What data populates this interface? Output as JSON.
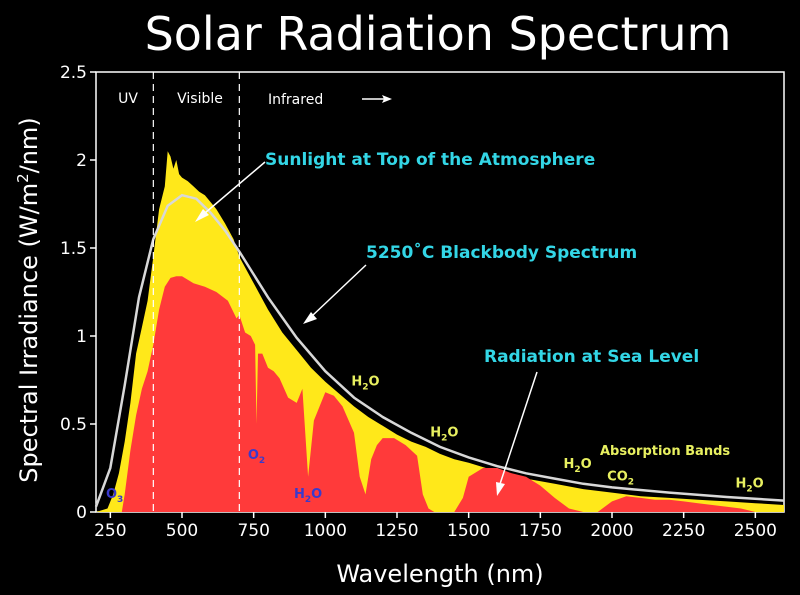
{
  "chart_data": {
    "type": "area",
    "title": "Solar Radiation Spectrum",
    "xlabel": "Wavelength (nm)",
    "ylabel_main": "Spectral Irradiance (W/m",
    "ylabel_sup": "2",
    "ylabel_end": "/nm)",
    "xlim": [
      200,
      2600
    ],
    "ylim": [
      0,
      2.5
    ],
    "x_ticks": [
      250,
      500,
      750,
      1000,
      1250,
      1500,
      1750,
      2000,
      2250,
      2500
    ],
    "x_tick_labels": [
      "250",
      "500",
      "750",
      "1000",
      "1250",
      "1500",
      "1750",
      "2000",
      "2250",
      "2500"
    ],
    "y_ticks": [
      0,
      0.5,
      1,
      1.5,
      2,
      2.5
    ],
    "y_tick_labels": [
      "0",
      "0.5",
      "1",
      "1.5",
      "2",
      "2.5"
    ],
    "region_dividers": [
      400,
      700
    ],
    "regions": {
      "uv": "UV",
      "visible": "Visible",
      "infrared": "Infrared"
    },
    "colors": {
      "top_of_atmosphere": "#ffe81a",
      "sea_level": "#ff3a3a",
      "blackbody": "#d8d8d8",
      "label_cyan": "#33d6e6",
      "label_yellow": "#e8f060",
      "label_blue": "#3a3acc"
    },
    "annotations": {
      "toa": "Sunlight at Top of the Atmosphere",
      "blackbody": "5250˚C Blackbody Spectrum",
      "sea_level": "Radiation at Sea Level",
      "absorption": "Absorption Bands"
    },
    "molecules": [
      {
        "base": "O",
        "sub": "3",
        "x": 265,
        "y": 0.08,
        "color": "blue"
      },
      {
        "base": "O",
        "sub": "2",
        "x": 760,
        "y": 0.3,
        "color": "blue"
      },
      {
        "base": "H",
        "sub": "2",
        "tail": "O",
        "x": 940,
        "y": 0.08,
        "color": "blue"
      },
      {
        "base": "H",
        "sub": "2",
        "tail": "O",
        "x": 1140,
        "y": 0.72,
        "color": "yellow"
      },
      {
        "base": "H",
        "sub": "2",
        "tail": "O",
        "x": 1415,
        "y": 0.43,
        "color": "yellow"
      },
      {
        "base": "H",
        "sub": "2",
        "tail": "O",
        "x": 1880,
        "y": 0.25,
        "color": "yellow"
      },
      {
        "base": "CO",
        "sub": "2",
        "x": 2030,
        "y": 0.18,
        "color": "yellow"
      },
      {
        "base": "H",
        "sub": "2",
        "tail": "O",
        "x": 2480,
        "y": 0.14,
        "color": "yellow"
      }
    ],
    "series": [
      {
        "name": "Sunlight at Top of the Atmosphere",
        "x": [
          200,
          240,
          260,
          280,
          300,
          320,
          340,
          360,
          380,
          400,
          420,
          440,
          450,
          460,
          470,
          480,
          490,
          500,
          520,
          540,
          560,
          580,
          600,
          620,
          650,
          680,
          700,
          750,
          800,
          850,
          900,
          950,
          1000,
          1050,
          1100,
          1150,
          1200,
          1250,
          1300,
          1350,
          1400,
          1450,
          1500,
          1600,
          1700,
          1800,
          1900,
          2000,
          2100,
          2200,
          2300,
          2400,
          2500,
          2600
        ],
        "y": [
          0.0,
          0.02,
          0.1,
          0.22,
          0.4,
          0.62,
          0.9,
          1.05,
          1.2,
          1.45,
          1.72,
          1.85,
          2.05,
          2.02,
          1.95,
          2.0,
          1.92,
          1.9,
          1.88,
          1.85,
          1.82,
          1.8,
          1.76,
          1.72,
          1.64,
          1.55,
          1.45,
          1.3,
          1.15,
          1.02,
          0.92,
          0.82,
          0.74,
          0.67,
          0.6,
          0.54,
          0.49,
          0.44,
          0.4,
          0.37,
          0.33,
          0.3,
          0.28,
          0.23,
          0.19,
          0.16,
          0.13,
          0.11,
          0.09,
          0.08,
          0.07,
          0.06,
          0.05,
          0.04
        ]
      },
      {
        "name": "5250˚C Blackbody Spectrum",
        "x": [
          200,
          250,
          300,
          350,
          400,
          450,
          500,
          550,
          600,
          650,
          700,
          800,
          900,
          1000,
          1100,
          1200,
          1300,
          1400,
          1500,
          1600,
          1700,
          1800,
          1900,
          2000,
          2200,
          2400,
          2600
        ],
        "y": [
          0.03,
          0.25,
          0.72,
          1.22,
          1.55,
          1.74,
          1.8,
          1.78,
          1.7,
          1.6,
          1.48,
          1.22,
          0.99,
          0.8,
          0.65,
          0.54,
          0.45,
          0.37,
          0.31,
          0.26,
          0.22,
          0.19,
          0.16,
          0.14,
          0.11,
          0.085,
          0.065
        ]
      },
      {
        "name": "Radiation at Sea Level",
        "x": [
          290,
          300,
          320,
          340,
          360,
          380,
          400,
          420,
          440,
          460,
          480,
          500,
          540,
          580,
          620,
          660,
          690,
          700,
          720,
          740,
          755,
          760,
          765,
          780,
          800,
          820,
          840,
          870,
          900,
          920,
          940,
          960,
          980,
          1000,
          1030,
          1060,
          1100,
          1120,
          1140,
          1160,
          1180,
          1200,
          1240,
          1280,
          1320,
          1340,
          1360,
          1380,
          1400,
          1450,
          1480,
          1500,
          1550,
          1600,
          1650,
          1700,
          1750,
          1800,
          1850,
          1900,
          1950,
          2000,
          2050,
          2100,
          2150,
          2200,
          2250,
          2300,
          2350,
          2400,
          2450,
          2500,
          2600
        ],
        "y": [
          0.0,
          0.1,
          0.35,
          0.55,
          0.7,
          0.8,
          0.95,
          1.15,
          1.28,
          1.33,
          1.34,
          1.34,
          1.3,
          1.28,
          1.25,
          1.2,
          1.1,
          1.12,
          1.02,
          1.0,
          0.95,
          0.5,
          0.9,
          0.9,
          0.82,
          0.8,
          0.76,
          0.65,
          0.62,
          0.7,
          0.2,
          0.52,
          0.6,
          0.68,
          0.66,
          0.6,
          0.45,
          0.2,
          0.1,
          0.3,
          0.38,
          0.42,
          0.42,
          0.38,
          0.32,
          0.1,
          0.02,
          0.0,
          0.0,
          0.0,
          0.08,
          0.2,
          0.25,
          0.25,
          0.22,
          0.2,
          0.15,
          0.08,
          0.02,
          0.0,
          0.0,
          0.06,
          0.09,
          0.08,
          0.07,
          0.07,
          0.06,
          0.05,
          0.04,
          0.03,
          0.02,
          0.0,
          0.0
        ]
      }
    ]
  }
}
